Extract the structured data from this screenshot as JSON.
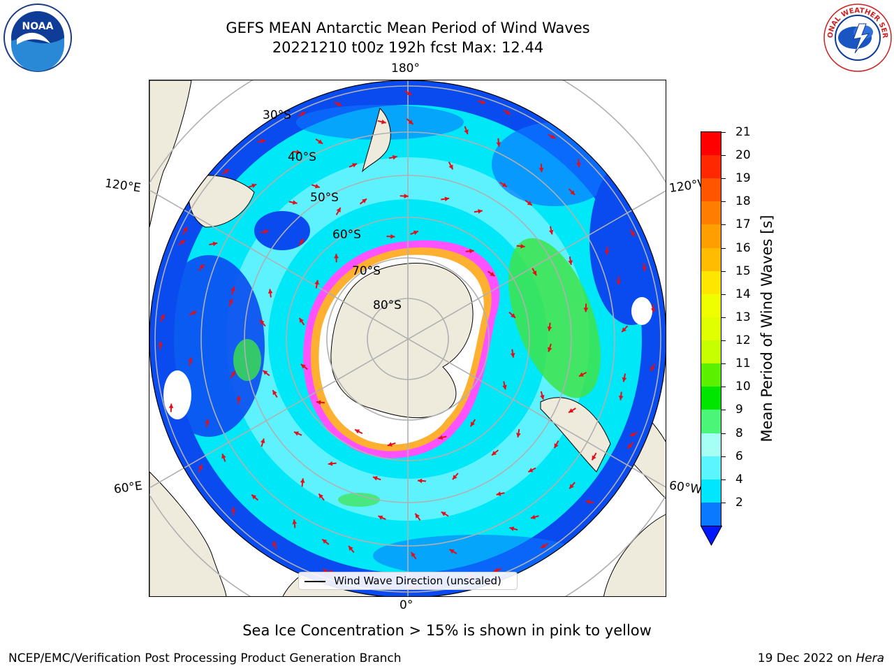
{
  "header": {
    "title_line1": "GEFS MEAN Antarctic Mean Period of Wind Waves",
    "title_line2": "20221210 t00z 192h fcst   Max: 12.44"
  },
  "logos": {
    "left": {
      "name": "noaa-logo",
      "text": "NOAA"
    },
    "right": {
      "name": "national-weather-service-logo",
      "text": "NATIONAL WEATHER SERVICE"
    }
  },
  "map": {
    "projection": "south-polar-stereographic",
    "longitude_labels": {
      "top": "180°",
      "upper_left": "120°E",
      "upper_right": "120°W",
      "lower_left": "60°E",
      "lower_right": "60°W",
      "bottom": "0°"
    },
    "latitude_labels": [
      "30°S",
      "40°S",
      "50°S",
      "60°S",
      "70°S",
      "80°S"
    ],
    "colors": {
      "land": "#efebdc",
      "ocean_low": "#0a4bf0",
      "ocean_mid": "#00e8f8",
      "ocean_light": "#5ef2ff",
      "green": "#3ee34a",
      "ice_pink": "#ff52ff",
      "ice_yellow": "#ffb030",
      "arrow": "#e0101a",
      "grid": "#b0b0b0"
    },
    "legend_label": "Wind Wave Direction (unscaled)"
  },
  "colorbar": {
    "label": "Mean Period of Wind Waves [s]",
    "ticks": [
      "21",
      "20",
      "19",
      "18",
      "17",
      "16",
      "15",
      "14",
      "13",
      "12",
      "11",
      "10",
      "9",
      "8",
      "6",
      "4",
      "2"
    ],
    "colors": [
      "#ff0000",
      "#ff2800",
      "#ff5500",
      "#ff7d00",
      "#ff9e00",
      "#ffbc00",
      "#ffe600",
      "#f0ff00",
      "#e0ff00",
      "#c8ff00",
      "#5af000",
      "#00e600",
      "#4bf578",
      "#a5fff5",
      "#5af5ff",
      "#00e6ff",
      "#0a78ff"
    ]
  },
  "footer": {
    "subtitle": "Sea Ice Concentration > 15% is shown in pink to yellow",
    "left": "NCEP/EMC/Verification Post Processing Product Generation Branch",
    "right_date": "19 Dec 2022 on ",
    "right_host": "Hera"
  }
}
